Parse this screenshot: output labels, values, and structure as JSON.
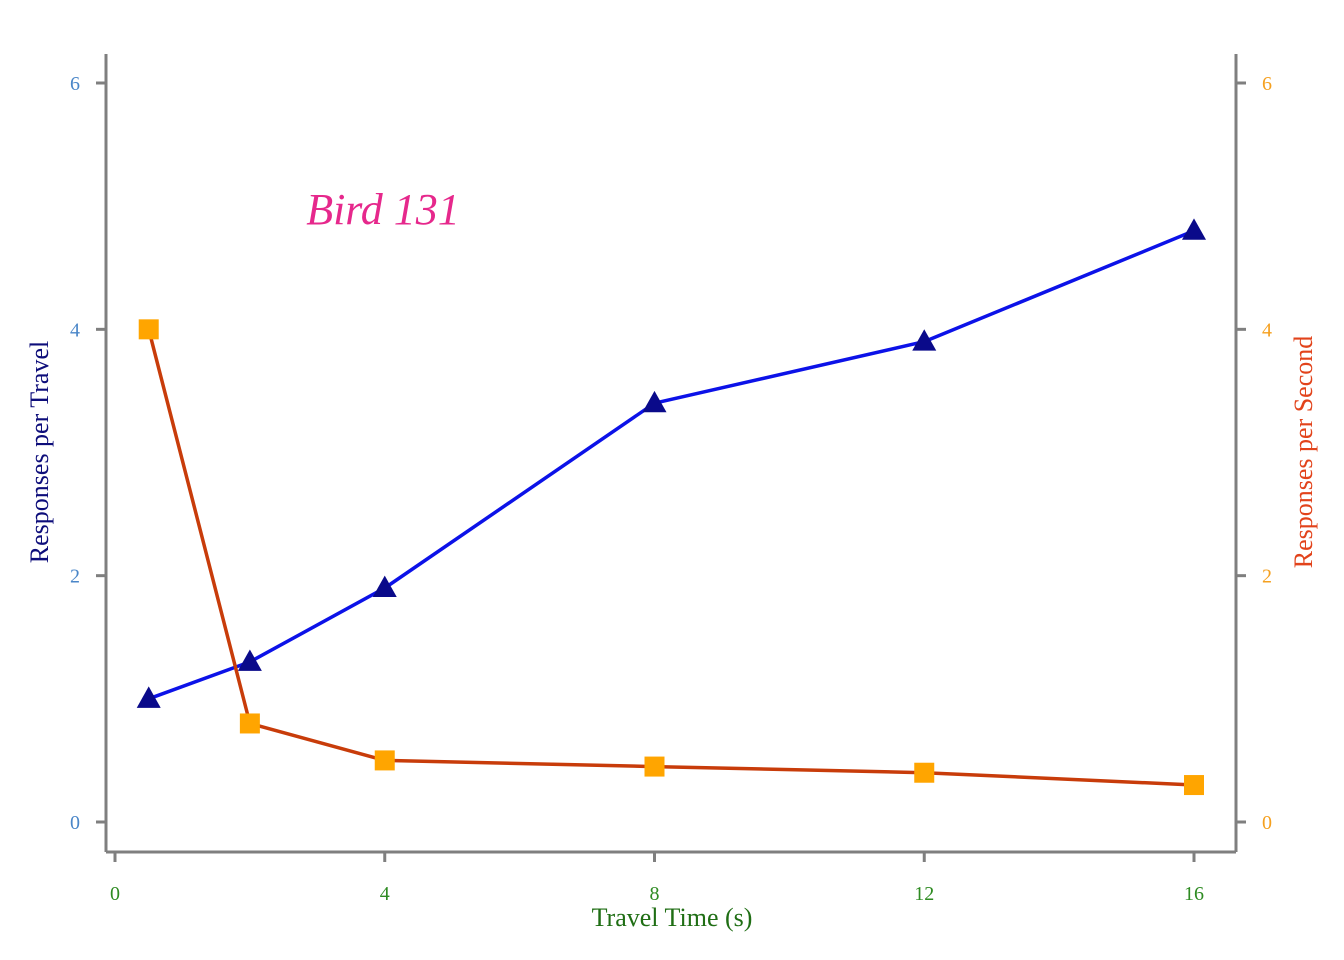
{
  "chart_data": {
    "type": "line",
    "annotation": "Bird 131",
    "xlabel": "Travel Time (s)",
    "ylabel_left": "Responses per Travel",
    "ylabel_right": "Responses per Second",
    "xlim": [
      0,
      16
    ],
    "ylim_left": [
      0,
      6
    ],
    "ylim_right": [
      0,
      6
    ],
    "x_ticks": [
      0,
      4,
      8,
      12,
      16
    ],
    "y_ticks_left": [
      0,
      2,
      4,
      6
    ],
    "y_ticks_right": [
      0,
      2,
      4,
      6
    ],
    "grid": false,
    "series": [
      {
        "axis": "left",
        "marker": "triangle",
        "x": [
          0.5,
          2,
          4,
          8,
          12,
          16
        ],
        "values": [
          1.0,
          1.3,
          1.9,
          3.4,
          3.9,
          4.8
        ]
      },
      {
        "axis": "right",
        "marker": "square",
        "x": [
          0.5,
          2,
          4,
          8,
          12,
          16
        ],
        "values": [
          4.0,
          0.8,
          0.5,
          0.45,
          0.4,
          0.3
        ]
      }
    ],
    "colors": {
      "axis_line": "#7f7f7f",
      "x_tick_label": "#2e8b22",
      "x_axis_title": "#1f6e14",
      "left_tick_label": "#4a86c8",
      "left_axis_title": "#0d0d7a",
      "right_tick_label": "#f5a01f",
      "right_axis_title": "#e2431b",
      "annotation": "#e6288c",
      "series_left_line": "#0c12e8",
      "series_left_marker": "#0a0a8a",
      "series_right_line": "#c83c0a",
      "series_right_marker": "#ffa500"
    }
  }
}
